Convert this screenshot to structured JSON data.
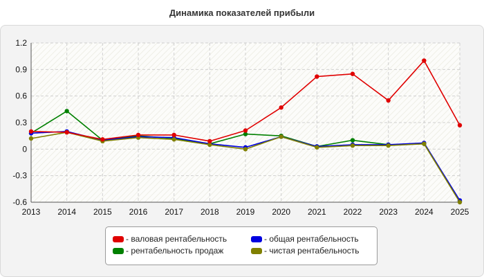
{
  "chart_data": {
    "type": "line",
    "title": "Динамика показателей прибыли",
    "x": [
      "2013",
      "2014",
      "2015",
      "2016",
      "2017",
      "2018",
      "2019",
      "2020",
      "2021",
      "2022",
      "2023",
      "2024",
      "2025"
    ],
    "ylim": [
      -0.6,
      1.2
    ],
    "yticks": [
      "1.2",
      "0.9",
      "0.6",
      "0.3",
      "0",
      "-0.3",
      "-0.6"
    ],
    "grid": true,
    "legend_position": "bottom",
    "series": [
      {
        "name": "- валовая рентабельность",
        "color": "#e00000",
        "values": [
          0.2,
          0.19,
          0.11,
          0.16,
          0.16,
          0.09,
          0.21,
          0.47,
          0.82,
          0.85,
          0.55,
          1.0,
          0.27
        ]
      },
      {
        "name": "- общая рентабельность",
        "color": "#0000e0",
        "values": [
          0.18,
          0.2,
          0.1,
          0.14,
          0.13,
          0.06,
          0.02,
          0.14,
          0.03,
          0.05,
          0.05,
          0.07,
          -0.58
        ]
      },
      {
        "name": "- рентабельность продаж",
        "color": "#008000",
        "values": [
          0.18,
          0.43,
          0.1,
          0.15,
          0.12,
          0.06,
          0.17,
          0.15,
          0.03,
          0.1,
          0.05,
          0.06,
          -0.59
        ]
      },
      {
        "name": "- чистая рентабельность",
        "color": "#808000",
        "values": [
          0.12,
          0.19,
          0.09,
          0.13,
          0.11,
          0.05,
          0.0,
          0.14,
          0.02,
          0.04,
          0.04,
          0.06,
          -0.6
        ]
      }
    ]
  }
}
